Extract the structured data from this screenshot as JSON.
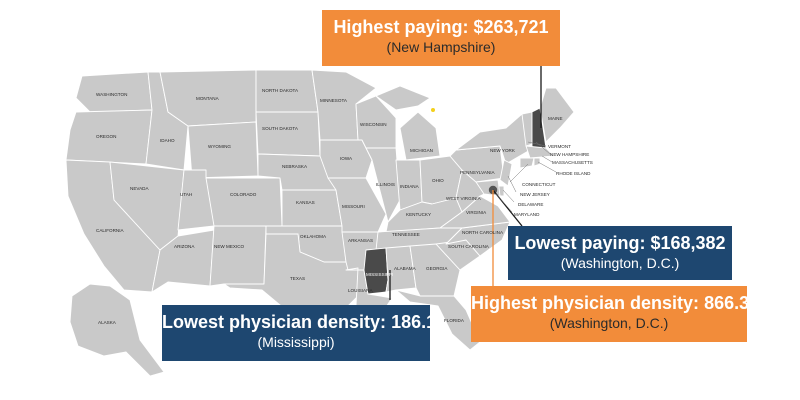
{
  "colors": {
    "state_fill": "#c9c9c9",
    "state_border": "#ffffff",
    "highlight_state": "#4a4a4a",
    "orange": "#f28c3a",
    "navy": "#1e4770",
    "connector": "#1a1a1a"
  },
  "callouts": {
    "highest_paying": {
      "label": "Highest paying:",
      "value": "$263,721",
      "place": "(New Hampshire)"
    },
    "lowest_paying": {
      "label": "Lowest paying:",
      "value": "$168,382",
      "place": "(Washington, D.C.)"
    },
    "highest_density": {
      "label": "Highest physician density:",
      "value": "866.3",
      "place": "(Washington, D.C.)"
    },
    "lowest_density": {
      "label": "Lowest physician density:",
      "value": "186.1",
      "place": "(Mississippi)"
    }
  },
  "highlighted_states": [
    "NEW HAMPSHIRE",
    "MISSISSIPPI"
  ],
  "highlighted_point": "WASHINGTON, D.C.",
  "state_labels": [
    "WASHINGTON",
    "OREGON",
    "CALIFORNIA",
    "IDAHO",
    "NEVADA",
    "MONTANA",
    "WYOMING",
    "UTAH",
    "ARIZONA",
    "COLORADO",
    "NEW MEXICO",
    "NORTH DAKOTA",
    "SOUTH DAKOTA",
    "NEBRASKA",
    "KANSAS",
    "OKLAHOMA",
    "TEXAS",
    "MINNESOTA",
    "IOWA",
    "MISSOURI",
    "ARKANSAS",
    "LOUISIANA",
    "WISCONSIN",
    "ILLINOIS",
    "MICHIGAN",
    "INDIANA",
    "OHIO",
    "KENTUCKY",
    "TENNESSEE",
    "MISSISSIPPI",
    "ALABAMA",
    "GEORGIA",
    "FLORIDA",
    "SOUTH CAROLINA",
    "NORTH CAROLINA",
    "VIRGINIA",
    "WEST VIRGINIA",
    "PENNSYLVANIA",
    "NEW YORK",
    "MAINE",
    "VERMONT",
    "NEW HAMPSHIRE",
    "MASSACHUSETTS",
    "RHODE ISLAND",
    "CONNECTICUT",
    "NEW JERSEY",
    "DELAWARE",
    "MARYLAND",
    "ALASKA"
  ]
}
